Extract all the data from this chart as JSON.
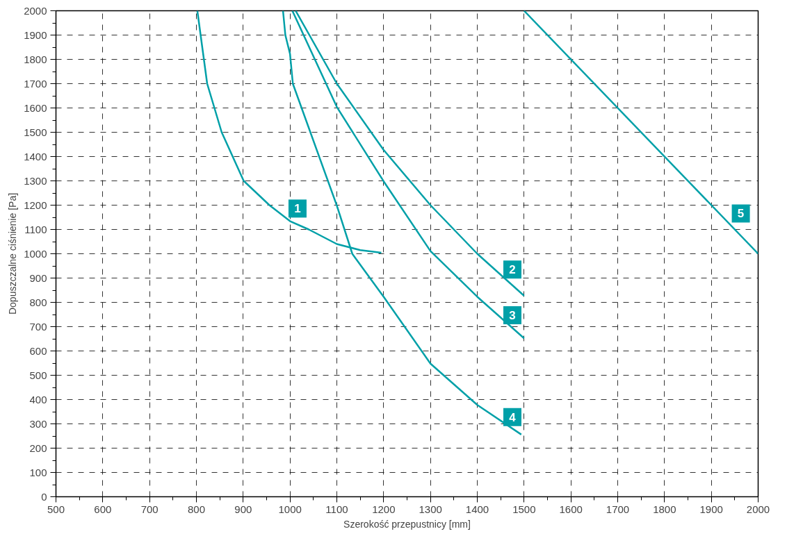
{
  "chart_data": {
    "type": "line",
    "xlabel": "Szerokość przepustnicy [mm]",
    "ylabel": "Dopuszczalne ciśnienie [Pa]",
    "xlim": [
      500,
      2000
    ],
    "ylim": [
      0,
      2000
    ],
    "xticks": [
      500,
      600,
      700,
      800,
      900,
      1000,
      1100,
      1200,
      1300,
      1400,
      1500,
      1600,
      1700,
      1800,
      1900,
      2000
    ],
    "yticks": [
      0,
      100,
      200,
      300,
      400,
      500,
      600,
      700,
      800,
      900,
      1000,
      1100,
      1200,
      1300,
      1400,
      1500,
      1600,
      1700,
      1800,
      1900,
      2000
    ],
    "grid": true,
    "marker": "none",
    "line_style": "solid",
    "series": [
      {
        "color": "#00a0a8",
        "x": [
          802,
          823,
          854,
          901,
          956,
          1000,
          1040,
          1100,
          1150,
          1195
        ],
        "values": [
          2000,
          1700,
          1500,
          1300,
          1200,
          1134,
          1100,
          1040,
          1015,
          1004
        ]
      },
      {
        "color": "#00a0a8",
        "x": [
          1012,
          1100,
          1200,
          1300,
          1400,
          1500
        ],
        "values": [
          2000,
          1700,
          1427,
          1200,
          1000,
          827
        ]
      },
      {
        "color": "#00a0a8",
        "x": [
          1005,
          1100,
          1200,
          1300,
          1400,
          1500
        ],
        "values": [
          2000,
          1604,
          1298,
          1011,
          823,
          652
        ]
      },
      {
        "color": "#00a0a8",
        "x": [
          985,
          990,
          1000,
          1006,
          1100,
          1133,
          1200,
          1300,
          1400,
          1494
        ],
        "values": [
          2000,
          1900,
          1822,
          1700,
          1198,
          1000,
          823,
          548,
          378,
          256
        ]
      },
      {
        "color": "#00a0a8",
        "x": [
          1500,
          2000
        ],
        "values": [
          2000,
          1000
        ]
      }
    ],
    "annotations": [
      {
        "text": "1",
        "x": 1016,
        "y": 1186
      },
      {
        "text": "2",
        "x": 1475,
        "y": 935
      },
      {
        "text": "3",
        "x": 1475,
        "y": 747
      },
      {
        "text": "4",
        "x": 1475,
        "y": 328
      },
      {
        "text": "5",
        "x": 1963,
        "y": 1166
      }
    ]
  }
}
